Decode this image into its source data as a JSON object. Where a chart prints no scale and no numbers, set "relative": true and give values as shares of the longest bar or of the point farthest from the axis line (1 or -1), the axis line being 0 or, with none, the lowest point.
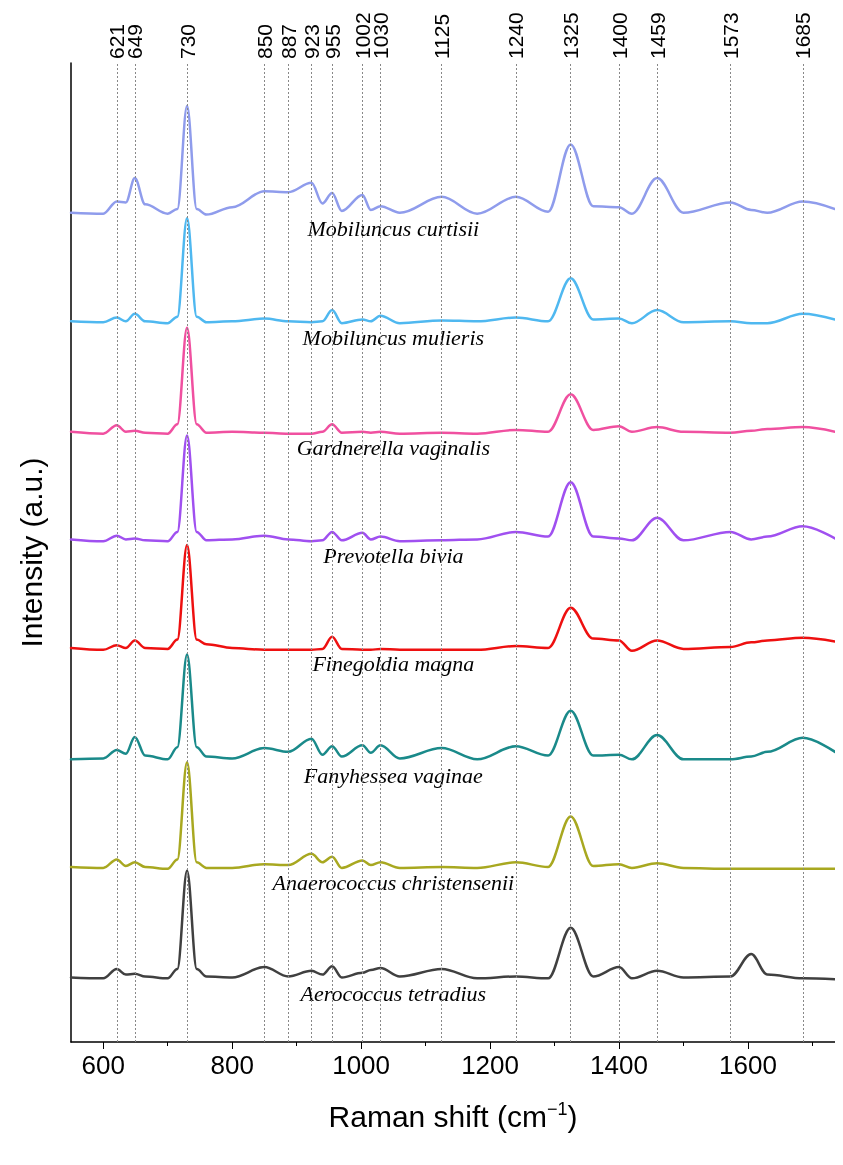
{
  "chart_data": {
    "type": "line",
    "relative": true,
    "xlabel": "Raman shift (cm$^{−1}$)",
    "ylabel": "Intensity (a.u.)",
    "xlim": [
      550,
      1735
    ],
    "xticks": [
      600,
      800,
      1000,
      1200,
      1400,
      1600
    ],
    "x": [
      550,
      600,
      621,
      635,
      649,
      665,
      700,
      715,
      730,
      745,
      760,
      800,
      850,
      887,
      923,
      940,
      955,
      970,
      1002,
      1015,
      1030,
      1060,
      1125,
      1180,
      1240,
      1290,
      1325,
      1360,
      1400,
      1420,
      1459,
      1500,
      1573,
      1605,
      1630,
      1685,
      1735
    ],
    "series": [
      {
        "name": "Mobiluncus curtisii",
        "color": "#8f9cec",
        "values": [
          0.886,
          0.885,
          0.898,
          0.897,
          0.923,
          0.895,
          0.885,
          0.89,
          1.0,
          0.89,
          0.884,
          0.892,
          0.909,
          0.908,
          0.918,
          0.896,
          0.907,
          0.888,
          0.905,
          0.889,
          0.893,
          0.886,
          0.903,
          0.885,
          0.903,
          0.887,
          0.959,
          0.893,
          0.892,
          0.885,
          0.923,
          0.886,
          0.897,
          0.889,
          0.886,
          0.898,
          0.89
        ]
      },
      {
        "name": "Mobiluncus mulieris",
        "color": "#4fb8f0",
        "values": [
          0.77,
          0.769,
          0.774,
          0.77,
          0.778,
          0.77,
          0.768,
          0.775,
          0.88,
          0.775,
          0.769,
          0.77,
          0.773,
          0.77,
          0.769,
          0.77,
          0.782,
          0.768,
          0.772,
          0.77,
          0.776,
          0.768,
          0.771,
          0.77,
          0.774,
          0.77,
          0.816,
          0.772,
          0.773,
          0.768,
          0.782,
          0.769,
          0.77,
          0.768,
          0.768,
          0.778,
          0.772
        ]
      },
      {
        "name": "Gardnerella vaginalis",
        "color": "#f050a0",
        "values": [
          0.652,
          0.65,
          0.659,
          0.652,
          0.653,
          0.651,
          0.65,
          0.66,
          0.763,
          0.66,
          0.651,
          0.652,
          0.651,
          0.65,
          0.65,
          0.652,
          0.66,
          0.651,
          0.652,
          0.651,
          0.652,
          0.65,
          0.651,
          0.65,
          0.654,
          0.652,
          0.692,
          0.654,
          0.658,
          0.652,
          0.657,
          0.652,
          0.651,
          0.653,
          0.655,
          0.657,
          0.652
        ]
      },
      {
        "name": "Prevotella bivia",
        "color": "#a050f0",
        "values": [
          0.537,
          0.535,
          0.541,
          0.537,
          0.538,
          0.536,
          0.535,
          0.545,
          0.648,
          0.545,
          0.536,
          0.537,
          0.541,
          0.537,
          0.535,
          0.536,
          0.545,
          0.536,
          0.544,
          0.537,
          0.54,
          0.535,
          0.536,
          0.537,
          0.545,
          0.54,
          0.598,
          0.54,
          0.538,
          0.536,
          0.56,
          0.536,
          0.545,
          0.537,
          0.54,
          0.551,
          0.538
        ]
      },
      {
        "name": "Finegoldia magna",
        "color": "#ee1010",
        "values": [
          0.421,
          0.419,
          0.424,
          0.421,
          0.429,
          0.421,
          0.42,
          0.43,
          0.531,
          0.43,
          0.425,
          0.421,
          0.419,
          0.419,
          0.419,
          0.42,
          0.433,
          0.42,
          0.419,
          0.419,
          0.42,
          0.419,
          0.419,
          0.419,
          0.423,
          0.421,
          0.464,
          0.431,
          0.429,
          0.418,
          0.429,
          0.42,
          0.422,
          0.427,
          0.429,
          0.432,
          0.428
        ]
      },
      {
        "name": "Fanyhessea vaginae",
        "color": "#1a8a8a",
        "values": [
          0.302,
          0.303,
          0.312,
          0.308,
          0.326,
          0.306,
          0.302,
          0.315,
          0.414,
          0.315,
          0.305,
          0.303,
          0.314,
          0.31,
          0.324,
          0.307,
          0.316,
          0.305,
          0.317,
          0.309,
          0.317,
          0.303,
          0.314,
          0.302,
          0.316,
          0.306,
          0.354,
          0.306,
          0.307,
          0.302,
          0.328,
          0.302,
          0.302,
          0.305,
          0.31,
          0.325,
          0.31
        ]
      },
      {
        "name": "Anaerococcus christensenii",
        "color": "#a8a820",
        "values": [
          0.187,
          0.186,
          0.195,
          0.188,
          0.192,
          0.187,
          0.185,
          0.195,
          0.299,
          0.192,
          0.186,
          0.186,
          0.19,
          0.189,
          0.201,
          0.192,
          0.198,
          0.186,
          0.194,
          0.189,
          0.192,
          0.186,
          0.187,
          0.186,
          0.192,
          0.187,
          0.241,
          0.188,
          0.19,
          0.186,
          0.191,
          0.186,
          0.185,
          0.185,
          0.185,
          0.185,
          0.185
        ]
      },
      {
        "name": "Aerococcus tetradius",
        "color": "#404040",
        "values": [
          0.069,
          0.068,
          0.078,
          0.072,
          0.073,
          0.07,
          0.068,
          0.078,
          0.183,
          0.078,
          0.07,
          0.069,
          0.08,
          0.07,
          0.076,
          0.072,
          0.081,
          0.069,
          0.074,
          0.077,
          0.079,
          0.07,
          0.078,
          0.068,
          0.07,
          0.068,
          0.122,
          0.07,
          0.08,
          0.068,
          0.076,
          0.069,
          0.07,
          0.094,
          0.072,
          0.068,
          0.067
        ]
      }
    ],
    "ref_lines": [
      {
        "axis": "x",
        "value": 621,
        "label": "621"
      },
      {
        "axis": "x",
        "value": 649,
        "label": "649"
      },
      {
        "axis": "x",
        "value": 730,
        "label": "730"
      },
      {
        "axis": "x",
        "value": 850,
        "label": "850"
      },
      {
        "axis": "x",
        "value": 887,
        "label": "887"
      },
      {
        "axis": "x",
        "value": 923,
        "label": "923"
      },
      {
        "axis": "x",
        "value": 955,
        "label": "955"
      },
      {
        "axis": "x",
        "value": 1002,
        "label": "1002"
      },
      {
        "axis": "x",
        "value": 1030,
        "label": "1030"
      },
      {
        "axis": "x",
        "value": 1125,
        "label": "1125"
      },
      {
        "axis": "x",
        "value": 1240,
        "label": "1240"
      },
      {
        "axis": "x",
        "value": 1325,
        "label": "1325"
      },
      {
        "axis": "x",
        "value": 1400,
        "label": "1400"
      },
      {
        "axis": "x",
        "value": 1459,
        "label": "1459"
      },
      {
        "axis": "x",
        "value": 1573,
        "label": "1573"
      },
      {
        "axis": "x",
        "value": 1685,
        "label": "1685"
      }
    ]
  }
}
